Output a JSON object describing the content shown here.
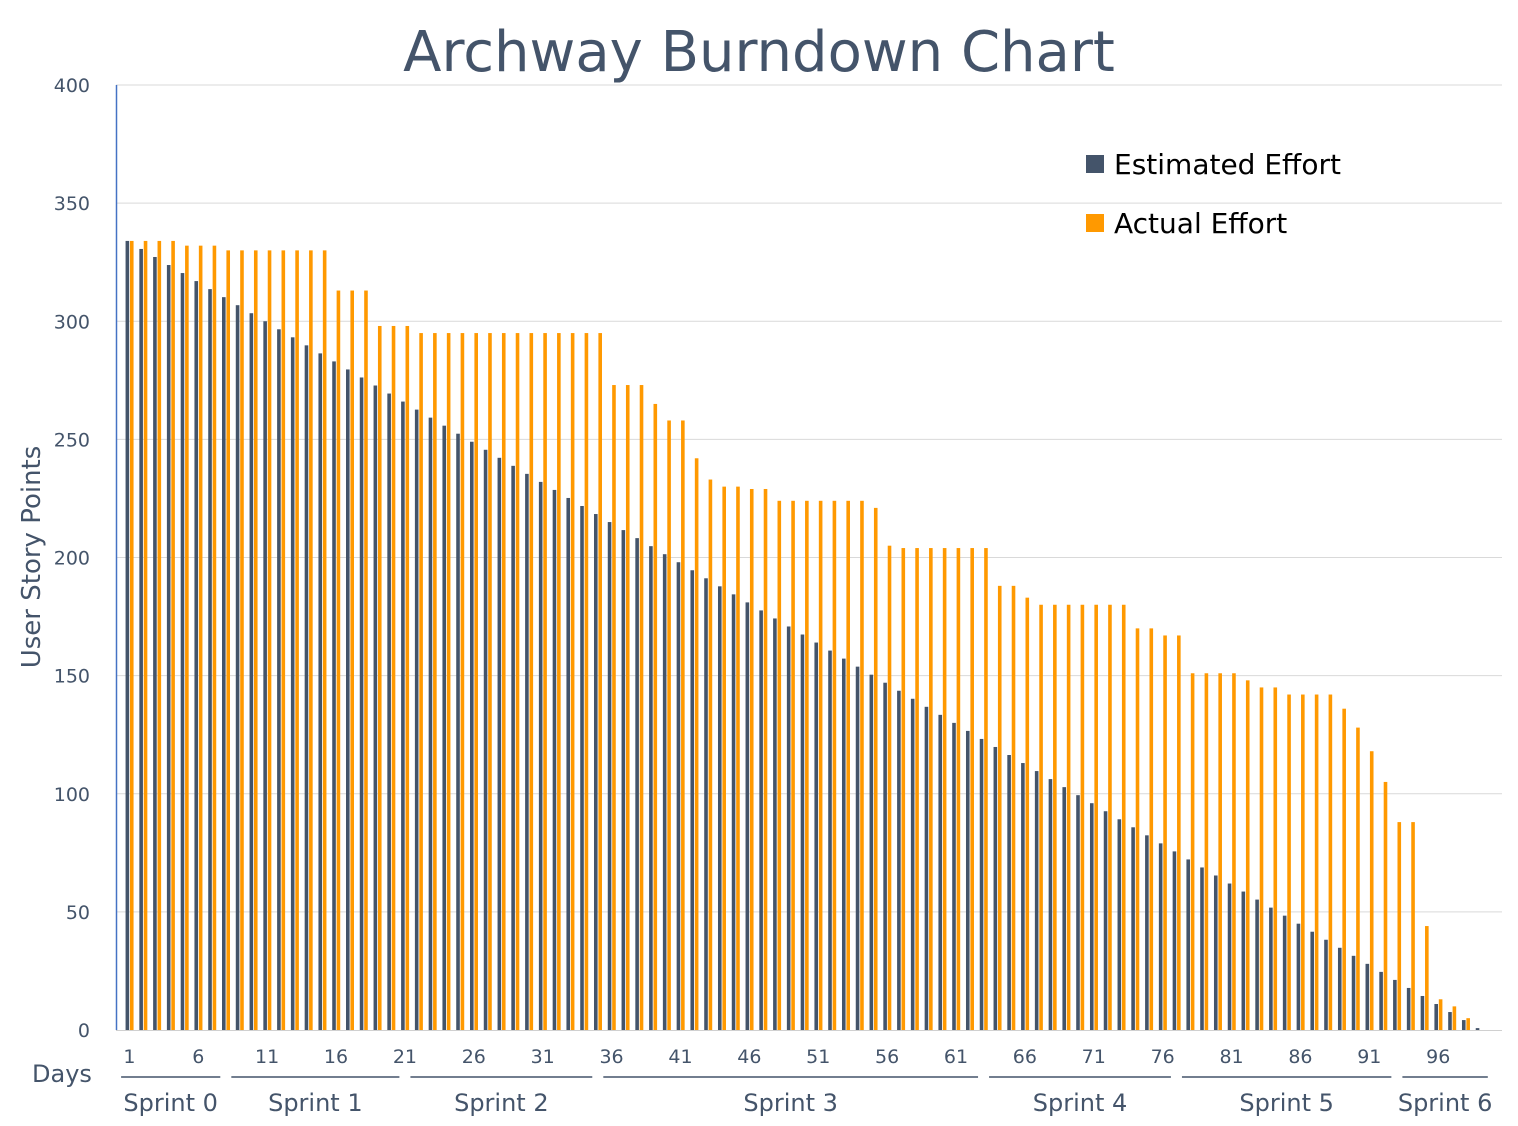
{
  "chart_data": {
    "type": "bar",
    "title": "Archway Burndown Chart",
    "ylabel": "User Story Points",
    "xlabel": "Days",
    "ylim": [
      0,
      400
    ],
    "yticks": [
      0,
      50,
      100,
      150,
      200,
      250,
      300,
      350,
      400
    ],
    "xticks": [
      1,
      6,
      11,
      16,
      21,
      26,
      31,
      36,
      41,
      46,
      51,
      56,
      61,
      66,
      71,
      76,
      81,
      86,
      91,
      96
    ],
    "grid": true,
    "legend_position": "top-right",
    "x": [
      1,
      2,
      3,
      4,
      5,
      6,
      7,
      8,
      9,
      10,
      11,
      12,
      13,
      14,
      15,
      16,
      17,
      18,
      19,
      20,
      21,
      22,
      23,
      24,
      25,
      26,
      27,
      28,
      29,
      30,
      31,
      32,
      33,
      34,
      35,
      36,
      37,
      38,
      39,
      40,
      41,
      42,
      43,
      44,
      45,
      46,
      47,
      48,
      49,
      50,
      51,
      52,
      53,
      54,
      55,
      56,
      57,
      58,
      59,
      60,
      61,
      62,
      63,
      64,
      65,
      66,
      67,
      68,
      69,
      70,
      71,
      72,
      73,
      74,
      75,
      76,
      77,
      78,
      79,
      80,
      81,
      82,
      83,
      84,
      85,
      86,
      87,
      88,
      89,
      90,
      91,
      92,
      93,
      94,
      95,
      96,
      97,
      98,
      99
    ],
    "series": [
      {
        "name": "Estimated Effort",
        "color": "#44546a",
        "values": [
          334,
          330.6,
          327.2,
          323.8,
          320.4,
          317,
          313.6,
          310.2,
          306.8,
          303.4,
          300,
          296.6,
          293.2,
          289.8,
          286.4,
          283,
          279.6,
          276.2,
          272.8,
          269.4,
          266,
          262.6,
          259.2,
          255.8,
          252.4,
          249,
          245.6,
          242.2,
          238.8,
          235.4,
          232,
          228.6,
          225.2,
          221.8,
          218.4,
          215,
          211.6,
          208.2,
          204.8,
          201.4,
          198,
          194.6,
          191.2,
          187.8,
          184.4,
          181,
          177.6,
          174.2,
          170.8,
          167.4,
          164,
          160.6,
          157.2,
          153.8,
          150.4,
          147,
          143.6,
          140.2,
          136.8,
          133.4,
          130,
          126.6,
          123.2,
          119.8,
          116.4,
          113,
          109.6,
          106.2,
          102.8,
          99.4,
          96,
          92.6,
          89.2,
          85.8,
          82.4,
          79,
          75.6,
          72.2,
          68.8,
          65.4,
          62,
          58.6,
          55.2,
          51.8,
          48.4,
          45,
          41.6,
          38.2,
          34.8,
          31.4,
          28,
          24.6,
          21.2,
          17.8,
          14.4,
          11,
          7.6,
          4.2,
          0.8
        ]
      },
      {
        "name": "Actual Effort",
        "color": "#ff9900",
        "values": [
          334,
          334,
          334,
          334,
          332,
          332,
          332,
          330,
          330,
          330,
          330,
          330,
          330,
          330,
          330,
          313,
          313,
          313,
          298,
          298,
          298,
          295,
          295,
          295,
          295,
          295,
          295,
          295,
          295,
          295,
          295,
          295,
          295,
          295,
          295,
          273,
          273,
          273,
          265,
          258,
          258,
          242,
          233,
          230,
          230,
          229,
          229,
          224,
          224,
          224,
          224,
          224,
          224,
          224,
          221,
          205,
          204,
          204,
          204,
          204,
          204,
          204,
          204,
          188,
          188,
          183,
          180,
          180,
          180,
          180,
          180,
          180,
          180,
          170,
          170,
          167,
          167,
          151,
          151,
          151,
          151,
          148,
          145,
          145,
          142,
          142,
          142,
          142,
          136,
          128,
          118,
          105,
          88,
          88,
          44,
          13,
          10,
          5,
          null
        ]
      }
    ],
    "day_label": "Days",
    "sprints": [
      {
        "label": "Sprint 0",
        "start": 1,
        "end": 7
      },
      {
        "label": "Sprint 1",
        "start": 9,
        "end": 20
      },
      {
        "label": "Sprint 2",
        "start": 22,
        "end": 34
      },
      {
        "label": "Sprint 3",
        "start": 36,
        "end": 62
      },
      {
        "label": "Sprint 4",
        "start": 64,
        "end": 76
      },
      {
        "label": "Sprint 5",
        "start": 78,
        "end": 92
      },
      {
        "label": "Sprint 6",
        "start": 94,
        "end": 99
      }
    ]
  }
}
